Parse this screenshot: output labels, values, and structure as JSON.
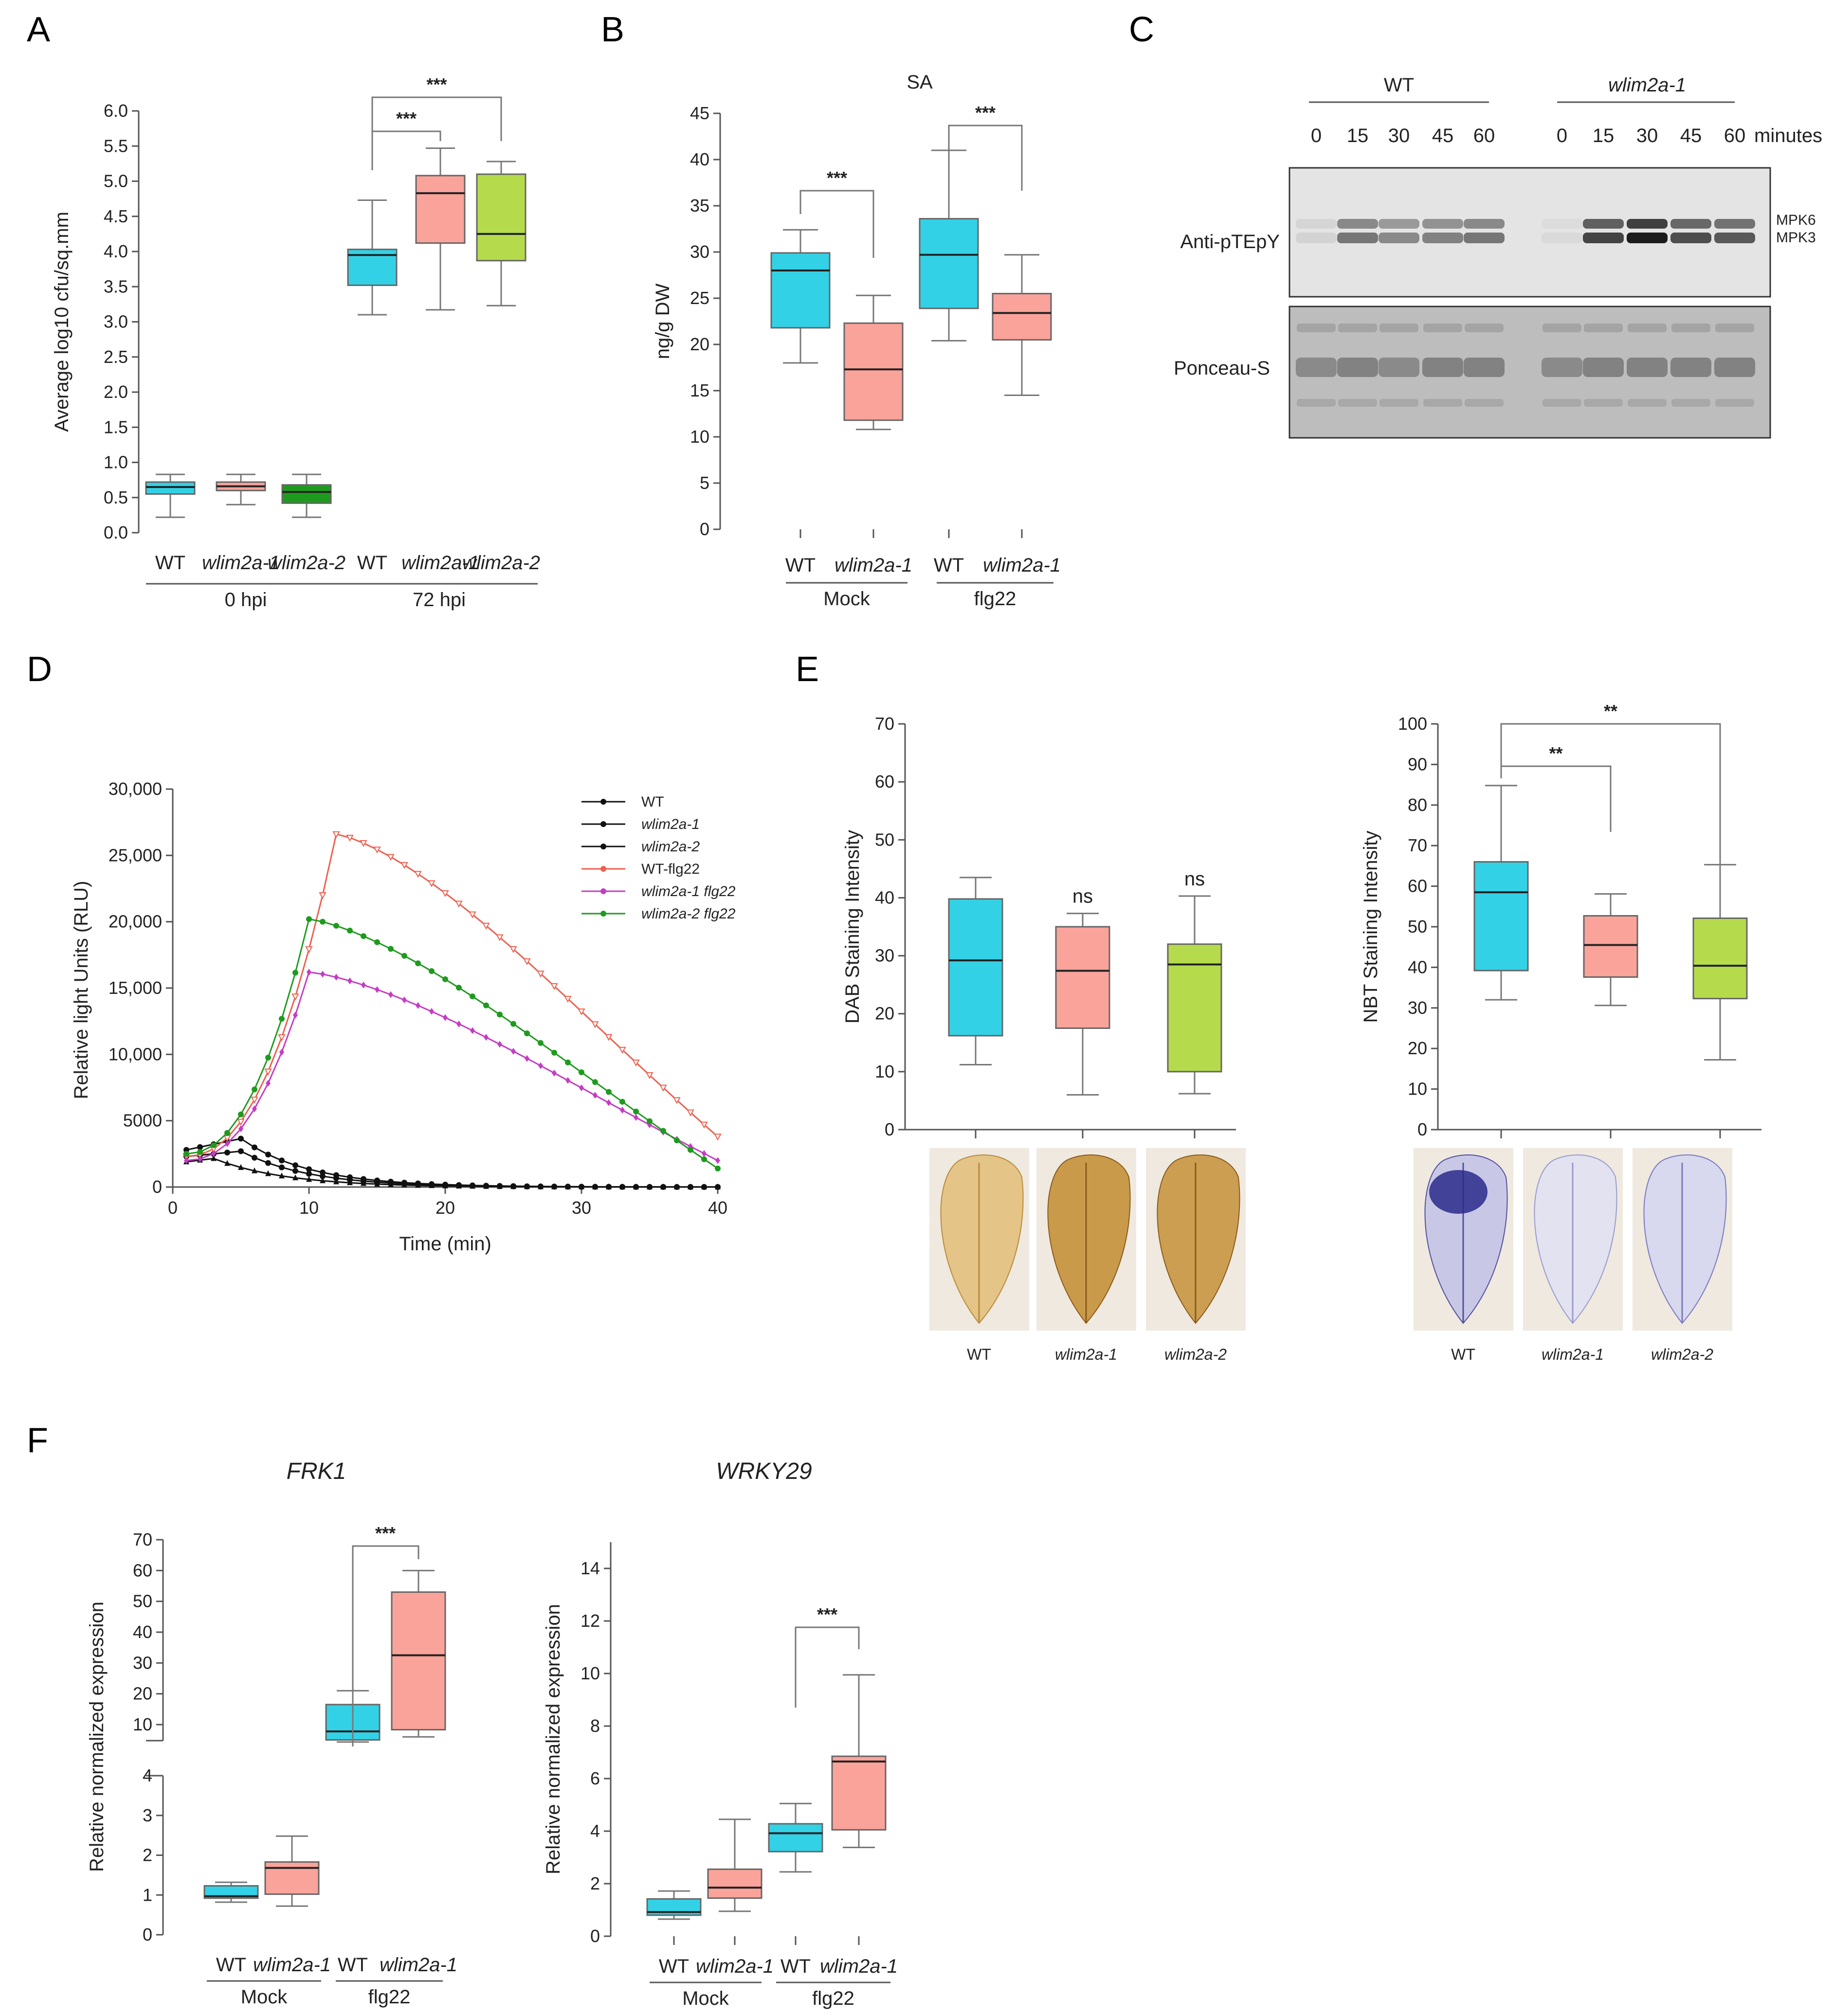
{
  "panels": [
    "A",
    "B",
    "C",
    "D",
    "E",
    "F"
  ],
  "colors": {
    "wt": "#33D1E6",
    "wlim2a1": "#FAA39B",
    "wlim2a2_0hpi": "#1E9B1E",
    "wlim2a2": "#B5DB4C",
    "wt_flg22": "#EE5F4E",
    "wlim2a1_flg22": "#C43DC4",
    "wlim2a2_flg22": "#1E9B1E",
    "ctrl": "#111111"
  },
  "chart_data": [
    {
      "id": "A",
      "type": "box",
      "title": "",
      "ylabel": "Average log10 cfu/sq.mm",
      "ylim": [
        0,
        6
      ],
      "yticks": [
        "0.0",
        "0.5",
        "1.0",
        "1.5",
        "2.0",
        "2.5",
        "3.0",
        "3.5",
        "4.0",
        "4.5",
        "5.0",
        "5.5",
        "6.0"
      ],
      "ytick_values": [
        0,
        0.5,
        1,
        1.5,
        2,
        2.5,
        3,
        3.5,
        4,
        4.5,
        5,
        5.5,
        6
      ],
      "categories": [
        "WT",
        "wlim2a-1",
        "wlim2a-2",
        "WT",
        "wlim2a-1",
        "wlim2a-2"
      ],
      "category_italic": [
        false,
        true,
        true,
        false,
        true,
        true
      ],
      "groups": [
        "0 hpi",
        "72 hpi"
      ],
      "boxes": [
        {
          "min": 0.22,
          "q1": 0.55,
          "median": 0.65,
          "q3": 0.72,
          "max": 0.83,
          "color": "wt"
        },
        {
          "min": 0.4,
          "q1": 0.6,
          "median": 0.66,
          "q3": 0.72,
          "max": 0.83,
          "color": "wlim2a1"
        },
        {
          "min": 0.22,
          "q1": 0.42,
          "median": 0.58,
          "q3": 0.68,
          "max": 0.83,
          "color": "wlim2a2_0hpi"
        },
        {
          "min": 3.1,
          "q1": 3.52,
          "median": 3.95,
          "q3": 4.03,
          "max": 4.73,
          "color": "wt"
        },
        {
          "min": 3.17,
          "q1": 4.12,
          "median": 4.83,
          "q3": 5.08,
          "max": 5.47,
          "color": "wlim2a1"
        },
        {
          "min": 3.23,
          "q1": 3.87,
          "median": 4.25,
          "q3": 5.1,
          "max": 5.28,
          "color": "wlim2a2"
        }
      ],
      "sig": [
        {
          "from": 3,
          "to": 4,
          "label": "***",
          "y": 5.6
        },
        {
          "from": 3,
          "to": 5,
          "label": "***",
          "y": 6.1
        }
      ]
    },
    {
      "id": "B",
      "type": "box",
      "title": "SA",
      "ylabel": "ng/g DW",
      "ylim": [
        0,
        45
      ],
      "yticks": [
        "0",
        "5",
        "10",
        "15",
        "20",
        "25",
        "30",
        "35",
        "40",
        "45"
      ],
      "ytick_values": [
        0,
        5,
        10,
        15,
        20,
        25,
        30,
        35,
        40,
        45
      ],
      "categories": [
        "WT",
        "wlim2a-1",
        "WT",
        "wlim2a-1"
      ],
      "category_italic": [
        false,
        true,
        false,
        true
      ],
      "groups": [
        "Mock",
        "flg22"
      ],
      "boxes": [
        {
          "min": 18.0,
          "q1": 21.8,
          "median": 28.0,
          "q3": 29.9,
          "max": 32.4,
          "color": "wt"
        },
        {
          "min": 10.8,
          "q1": 11.8,
          "median": 17.3,
          "q3": 22.3,
          "max": 25.3,
          "color": "wlim2a1"
        },
        {
          "min": 20.4,
          "q1": 23.9,
          "median": 29.7,
          "q3": 33.6,
          "max": 41.0,
          "color": "wt"
        },
        {
          "min": 14.5,
          "q1": 20.5,
          "median": 23.4,
          "q3": 25.5,
          "max": 29.7,
          "color": "wlim2a1"
        }
      ],
      "sig": [
        {
          "from": 0,
          "to": 1,
          "label": "***",
          "y": 36.5
        },
        {
          "from": 2,
          "to": 3,
          "label": "***",
          "y": 42.5
        }
      ]
    },
    {
      "id": "D",
      "type": "line",
      "title": "",
      "xlabel": "Time (min)",
      "ylabel": "Relative light Units (RLU)",
      "xlim": [
        0,
        40
      ],
      "ylim": [
        0,
        30000
      ],
      "xticks": [
        "0",
        "10",
        "20",
        "30",
        "40"
      ],
      "xtick_values": [
        0,
        10,
        20,
        30,
        40
      ],
      "yticks": [
        "0",
        "5000",
        "10,000",
        "15,000",
        "20,000",
        "25,000",
        "30,000"
      ],
      "ytick_values": [
        0,
        5000,
        10000,
        15000,
        20000,
        25000,
        30000
      ],
      "series": [
        {
          "name": "WT",
          "italic": false,
          "color": "ctrl",
          "marker": "dot",
          "peak_x": 5,
          "peak_y": 3650,
          "start_y": 2800,
          "tail_y": 0
        },
        {
          "name": "wlim2a-1",
          "italic": true,
          "color": "ctrl",
          "marker": "dot",
          "peak_x": 5,
          "peak_y": 2700,
          "start_y": 2300,
          "tail_y": 0
        },
        {
          "name": "wlim2a-2",
          "italic": true,
          "color": "ctrl",
          "marker": "tri",
          "peak_x": 3,
          "peak_y": 2150,
          "start_y": 1900,
          "tail_y": 0
        },
        {
          "name": "WT-flg22",
          "italic": false,
          "color": "wt_flg22",
          "marker": "tri-open",
          "peak_x": 12,
          "peak_y": 26600,
          "start_y": 2300,
          "tail_y": 3800
        },
        {
          "name": "wlim2a-1 flg22",
          "italic": true,
          "color": "wlim2a1_flg22",
          "marker": "diamond",
          "peak_x": 10,
          "peak_y": 16200,
          "start_y": 2000,
          "tail_y": 2000
        },
        {
          "name": "wlim2a-2 flg22",
          "italic": true,
          "color": "wlim2a2_flg22",
          "marker": "dot",
          "peak_x": 10,
          "peak_y": 20200,
          "start_y": 2500,
          "tail_y": 1400
        }
      ]
    },
    {
      "id": "E-DAB",
      "type": "box",
      "title": "",
      "ylabel": "DAB Staining Intensity",
      "ylim": [
        0,
        70
      ],
      "yticks": [
        "0",
        "10",
        "20",
        "30",
        "40",
        "50",
        "60",
        "70"
      ],
      "ytick_values": [
        0,
        10,
        20,
        30,
        40,
        50,
        60,
        70
      ],
      "categories": [
        "WT",
        "wlim2a-1",
        "wlim2a-2"
      ],
      "category_italic": [
        false,
        true,
        true
      ],
      "boxes": [
        {
          "min": 11.2,
          "q1": 16.2,
          "median": 29.2,
          "q3": 39.8,
          "max": 43.5,
          "color": "wt"
        },
        {
          "min": 6.0,
          "q1": 17.5,
          "median": 27.4,
          "q3": 35.0,
          "max": 37.3,
          "color": "wlim2a1"
        },
        {
          "min": 6.2,
          "q1": 10.0,
          "median": 28.5,
          "q3": 32.0,
          "max": 40.3,
          "color": "wlim2a2"
        }
      ],
      "labels_above": [
        null,
        "ns",
        "ns"
      ]
    },
    {
      "id": "E-NBT",
      "type": "box",
      "title": "",
      "ylabel": "NBT Staining Intensity",
      "ylim": [
        0,
        100
      ],
      "yticks": [
        "0",
        "10",
        "20",
        "30",
        "40",
        "50",
        "60",
        "70",
        "80",
        "90",
        "100"
      ],
      "ytick_values": [
        0,
        10,
        20,
        30,
        40,
        50,
        60,
        70,
        80,
        90,
        100
      ],
      "categories": [
        "WT",
        "wlim2a-1",
        "wlim2a-2"
      ],
      "category_italic": [
        false,
        true,
        true
      ],
      "boxes": [
        {
          "min": 32.0,
          "q1": 39.2,
          "median": 58.5,
          "q3": 66.0,
          "max": 84.8,
          "color": "wt"
        },
        {
          "min": 30.6,
          "q1": 37.6,
          "median": 45.5,
          "q3": 52.7,
          "max": 58.1,
          "color": "wlim2a1"
        },
        {
          "min": 17.2,
          "q1": 32.3,
          "median": 40.4,
          "q3": 52.1,
          "max": 65.3,
          "color": "wlim2a2"
        }
      ],
      "sig": [
        {
          "from": 0,
          "to": 1,
          "label": "**",
          "y": 90.7
        },
        {
          "from": 0,
          "to": 2,
          "label": "**",
          "y": 99.7
        }
      ]
    },
    {
      "id": "F-FRK1",
      "type": "box",
      "title": "FRK1",
      "ylabel": "Relative normalized expression",
      "ylim_lower": [
        0,
        4
      ],
      "ylim_upper": [
        10,
        70
      ],
      "yticks_lower": [
        "0",
        "1",
        "2",
        "3",
        "4"
      ],
      "ytick_values_lower": [
        0,
        1,
        2,
        3,
        4
      ],
      "yticks_upper": [
        "10",
        "20",
        "30",
        "40",
        "50",
        "60",
        "70"
      ],
      "ytick_values_upper": [
        10,
        20,
        30,
        40,
        50,
        60,
        70
      ],
      "categories": [
        "WT",
        "wlim2a-1",
        "WT",
        "wlim2a-1"
      ],
      "category_italic": [
        false,
        true,
        false,
        true
      ],
      "groups": [
        "Mock",
        "flg22"
      ],
      "boxes": [
        {
          "min": 0.82,
          "q1": 0.92,
          "median": 0.97,
          "q3": 1.23,
          "max": 1.32,
          "color": "wt"
        },
        {
          "min": 0.72,
          "q1": 1.02,
          "median": 1.68,
          "q3": 1.83,
          "max": 2.48,
          "color": "wlim2a1"
        },
        {
          "min": 4.9,
          "q1": 5.5,
          "median": 8.0,
          "q3": 16.5,
          "max": 21.0,
          "color": "wt"
        },
        {
          "min": 6.4,
          "q1": 8.5,
          "median": 32.5,
          "q3": 53.0,
          "max": 60.0,
          "color": "wlim2a1"
        }
      ],
      "sig": [
        {
          "from": 2,
          "to": 3,
          "label": "***",
          "y": 67.0
        }
      ]
    },
    {
      "id": "F-WRKY29",
      "type": "box",
      "title": "WRKY29",
      "ylabel": "Relative normalized expression",
      "ylim": [
        0,
        15
      ],
      "yticks": [
        "0",
        "2",
        "4",
        "6",
        "8",
        "10",
        "12",
        "14"
      ],
      "ytick_values": [
        0,
        2,
        4,
        6,
        8,
        10,
        12,
        14
      ],
      "categories": [
        "WT",
        "wlim2a-1",
        "WT",
        "wlim2a-1"
      ],
      "category_italic": [
        false,
        true,
        false,
        true
      ],
      "groups": [
        "Mock",
        "flg22"
      ],
      "boxes": [
        {
          "min": 0.65,
          "q1": 0.8,
          "median": 0.92,
          "q3": 1.42,
          "max": 1.72,
          "color": "wt"
        },
        {
          "min": 0.95,
          "q1": 1.45,
          "median": 1.85,
          "q3": 2.55,
          "max": 4.45,
          "color": "wlim2a1"
        },
        {
          "min": 2.45,
          "q1": 3.22,
          "median": 3.92,
          "q3": 4.28,
          "max": 5.05,
          "color": "wt"
        },
        {
          "min": 3.38,
          "q1": 4.05,
          "median": 6.65,
          "q3": 6.85,
          "max": 9.95,
          "color": "wlim2a1"
        }
      ],
      "sig": [
        {
          "from": 2,
          "to": 3,
          "label": "***",
          "y": 11.8
        }
      ]
    }
  ],
  "blot": {
    "groups": [
      "WT",
      "wlim2a-1"
    ],
    "timepoints": [
      "0",
      "15",
      "30",
      "45",
      "60"
    ],
    "unit": "minutes",
    "row_labels": [
      "Anti-pTEpY",
      "Ponceau-S"
    ],
    "band_labels": [
      "MPK6",
      "MPK3"
    ],
    "intensities": [
      [
        0.08,
        0.55,
        0.45,
        0.5,
        0.55
      ],
      [
        0.05,
        0.8,
        1.0,
        0.75,
        0.7
      ]
    ]
  },
  "leaf_labels": {
    "dab": [
      "WT",
      "wlim2a-1",
      "wlim2a-2"
    ],
    "nbt": [
      "WT",
      "wlim2a-1",
      "wlim2a-2"
    ]
  }
}
